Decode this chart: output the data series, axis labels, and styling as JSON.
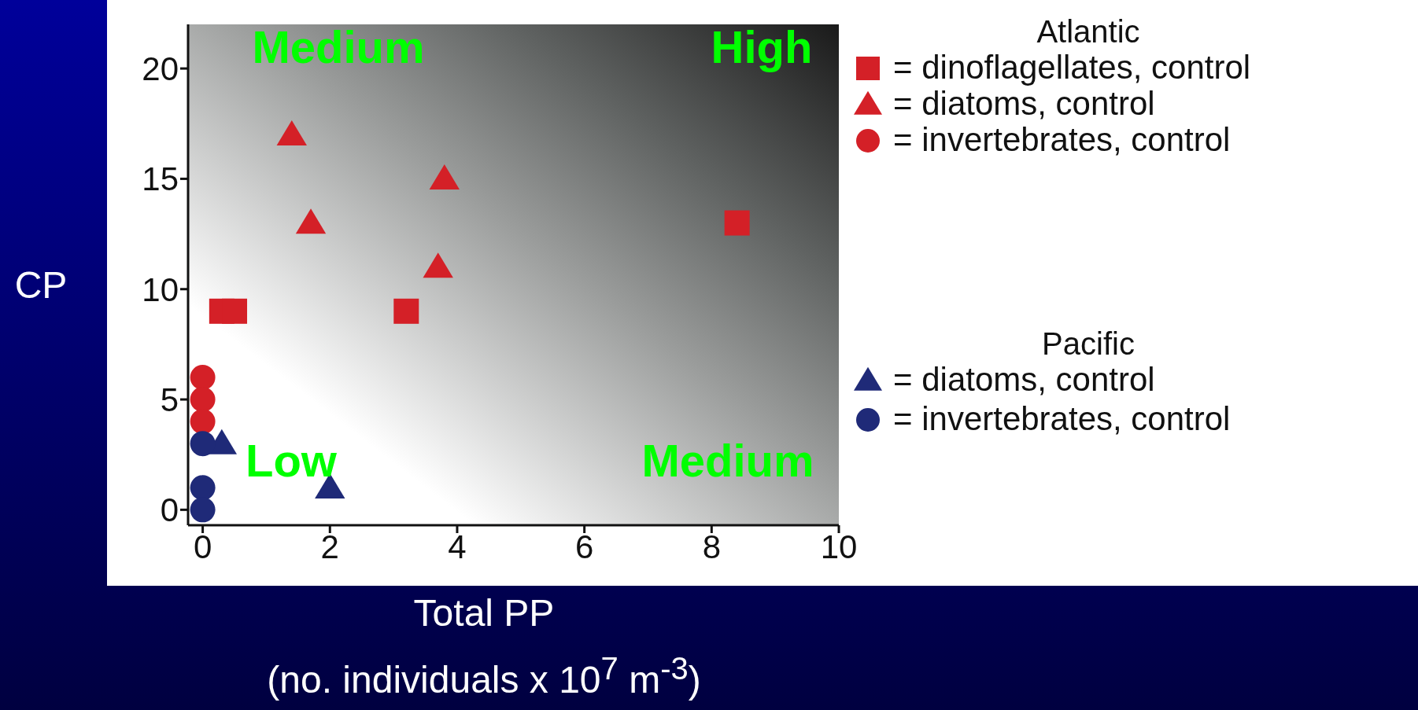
{
  "chart_data": {
    "type": "scatter",
    "xlabel": "Total PP\n(no. individuals x 10$^{7}$ m$^{-3}$)",
    "ylabel": "CP",
    "xlim": [
      -0.23,
      10
    ],
    "ylim": [
      -0.7,
      22
    ],
    "xticks": [
      0,
      2,
      4,
      6,
      8,
      10
    ],
    "yticks": [
      0,
      5,
      10,
      15,
      20
    ],
    "legend": "right",
    "annotations": [
      "Medium",
      "High",
      "Low",
      "Medium",
      "Atlantic",
      "Pacific"
    ],
    "series": [
      {
        "name": "= dinoflagellates, control",
        "color": "#d42027",
        "marker": "square",
        "x": [
          0.3,
          0.5,
          3.2,
          8.4
        ],
        "values": [
          9,
          9,
          9,
          13
        ]
      },
      {
        "name": "= diatoms, control",
        "color": "#d42027",
        "marker": "triangle",
        "x": [
          1.4,
          1.7,
          3.8,
          3.7
        ],
        "values": [
          17,
          13,
          15,
          11
        ]
      },
      {
        "name": "= invertebrates, control",
        "color": "#d42027",
        "marker": "circle",
        "x": [
          0,
          0,
          0
        ],
        "values": [
          6,
          5,
          4
        ]
      },
      {
        "name": "= diatoms, control",
        "color": "#1f2a78",
        "marker": "triangle",
        "x": [
          0.3,
          2
        ],
        "values": [
          3,
          1
        ]
      },
      {
        "name": "= invertebrates, control",
        "color": "#1f2a78",
        "marker": "circle",
        "x": [
          0,
          0,
          0
        ],
        "values": [
          3,
          1,
          0
        ]
      }
    ]
  }
}
